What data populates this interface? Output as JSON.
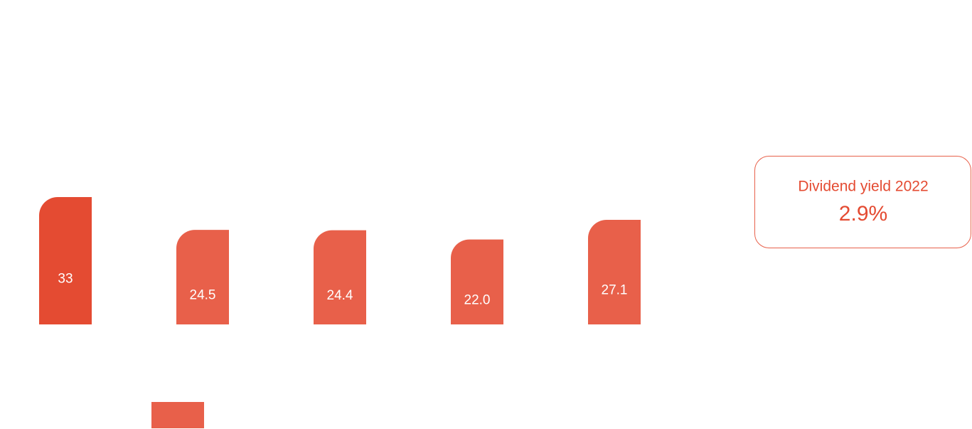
{
  "chart_data": {
    "type": "bar",
    "categories": [
      null,
      null,
      null,
      null,
      null
    ],
    "values": [
      33,
      24.5,
      24.4,
      22.0,
      27.1
    ],
    "value_labels": [
      "33",
      "24.5",
      "24.4",
      "22.0",
      "27.1"
    ],
    "colors": [
      "#e44b32",
      "#e8604a",
      "#e8604a",
      "#e8604a",
      "#e8604a"
    ],
    "ylim": [
      0,
      40
    ]
  },
  "card": {
    "title": "Dividend yield 2022",
    "value": "2.9%"
  }
}
